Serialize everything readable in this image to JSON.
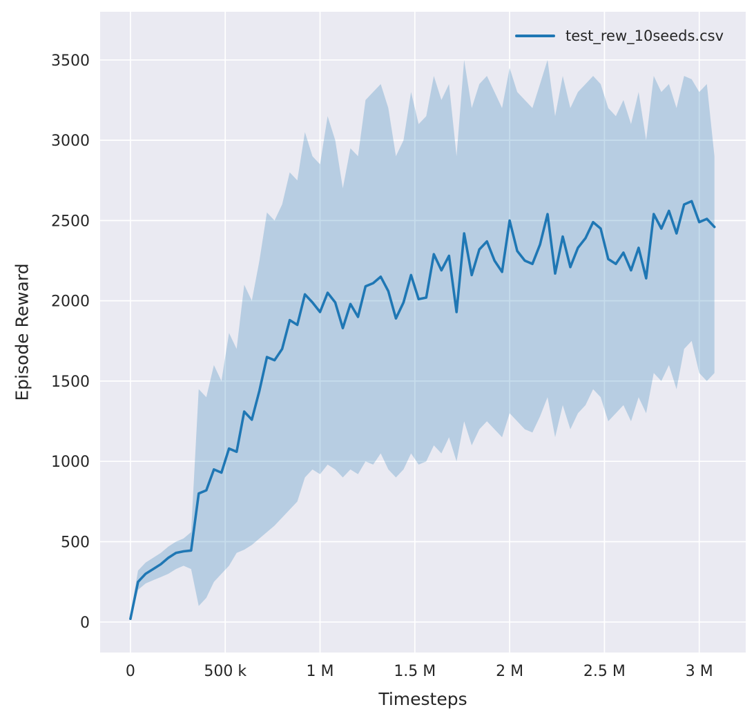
{
  "chart_data": {
    "type": "line",
    "title": "",
    "xlabel": "Timesteps",
    "ylabel": "Episode Reward",
    "legend_label": "test_rew_10seeds.csv",
    "legend_position": "upper right",
    "grid": true,
    "x_unit": "thousands of timesteps",
    "xlim": [
      -160,
      3245
    ],
    "ylim": [
      -190,
      3800
    ],
    "xticks": {
      "values": [
        0,
        500,
        1000,
        1500,
        2000,
        2500,
        3000
      ],
      "labels": [
        "0",
        "500 k",
        "1 M",
        "1.5 M",
        "2 M",
        "2.5 M",
        "3 M"
      ]
    },
    "yticks": {
      "values": [
        0,
        500,
        1000,
        1500,
        2000,
        2500,
        3000,
        3500
      ],
      "labels": [
        "0",
        "500",
        "1000",
        "1500",
        "2000",
        "2500",
        "3000",
        "3500"
      ]
    },
    "colors": {
      "line": "#1f77b4",
      "band": "#1f77b4",
      "band_opacity": 0.25,
      "plot_bg": "#eaeaf2",
      "grid": "#ffffff",
      "text": "#262626"
    },
    "x": [
      0,
      40,
      80,
      120,
      160,
      200,
      240,
      280,
      320,
      360,
      400,
      440,
      480,
      520,
      560,
      600,
      640,
      680,
      720,
      760,
      800,
      840,
      880,
      920,
      960,
      1000,
      1040,
      1080,
      1120,
      1160,
      1200,
      1240,
      1280,
      1320,
      1360,
      1400,
      1440,
      1480,
      1520,
      1560,
      1600,
      1640,
      1680,
      1720,
      1760,
      1800,
      1840,
      1880,
      1920,
      1960,
      2000,
      2040,
      2080,
      2120,
      2160,
      2200,
      2240,
      2280,
      2320,
      2360,
      2400,
      2440,
      2480,
      2520,
      2560,
      2600,
      2640,
      2680,
      2720,
      2760,
      2800,
      2840,
      2880,
      2920,
      2960,
      3000,
      3040,
      3080
    ],
    "series": [
      {
        "name": "test_rew_10seeds.csv",
        "mean": [
          20,
          250,
          300,
          330,
          360,
          400,
          430,
          440,
          445,
          800,
          820,
          950,
          930,
          1080,
          1060,
          1310,
          1260,
          1440,
          1650,
          1630,
          1700,
          1880,
          1850,
          2040,
          1990,
          1930,
          2050,
          1990,
          1830,
          1980,
          1900,
          2090,
          2110,
          2150,
          2060,
          1890,
          1990,
          2160,
          2010,
          2020,
          2290,
          2190,
          2280,
          1930,
          2420,
          2160,
          2320,
          2370,
          2250,
          2180,
          2500,
          2310,
          2250,
          2230,
          2350,
          2540,
          2170,
          2400,
          2210,
          2330,
          2390,
          2490,
          2450,
          2260,
          2230,
          2300,
          2190,
          2330,
          2140,
          2540,
          2450,
          2560,
          2420,
          2600,
          2620,
          2490,
          2510,
          2460
        ],
        "lower": [
          10,
          200,
          240,
          260,
          280,
          300,
          330,
          350,
          330,
          100,
          150,
          250,
          300,
          350,
          430,
          450,
          480,
          520,
          560,
          600,
          650,
          700,
          750,
          900,
          950,
          920,
          980,
          950,
          900,
          950,
          920,
          1000,
          980,
          1050,
          950,
          900,
          950,
          1050,
          980,
          1000,
          1100,
          1050,
          1150,
          1000,
          1250,
          1100,
          1200,
          1250,
          1200,
          1150,
          1300,
          1250,
          1200,
          1180,
          1280,
          1400,
          1150,
          1350,
          1200,
          1300,
          1350,
          1450,
          1400,
          1250,
          1300,
          1350,
          1250,
          1400,
          1300,
          1550,
          1500,
          1600,
          1450,
          1700,
          1750,
          1550,
          1500,
          1550
        ],
        "upper": [
          40,
          320,
          370,
          400,
          430,
          470,
          500,
          520,
          560,
          1450,
          1400,
          1600,
          1500,
          1800,
          1700,
          2100,
          2000,
          2250,
          2550,
          2500,
          2600,
          2800,
          2750,
          3050,
          2900,
          2850,
          3150,
          3000,
          2700,
          2950,
          2900,
          3250,
          3300,
          3350,
          3200,
          2900,
          3000,
          3300,
          3100,
          3150,
          3400,
          3250,
          3350,
          2900,
          3500,
          3200,
          3350,
          3400,
          3300,
          3200,
          3450,
          3300,
          3250,
          3200,
          3350,
          3500,
          3150,
          3400,
          3200,
          3300,
          3350,
          3400,
          3350,
          3200,
          3150,
          3250,
          3100,
          3300,
          3000,
          3400,
          3300,
          3350,
          3200,
          3400,
          3380,
          3300,
          3350,
          2900
        ]
      }
    ]
  }
}
